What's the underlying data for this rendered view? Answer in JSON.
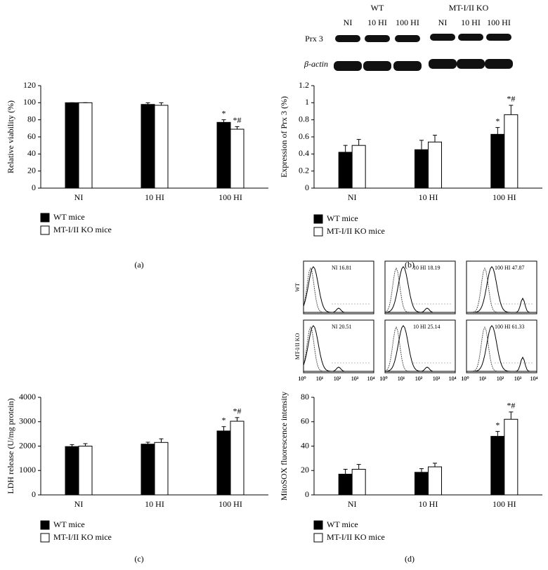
{
  "chart_data": [
    {
      "type": "bar",
      "panel": "(a)",
      "y_label": "Relative viability (%)",
      "categories": [
        "NI",
        "10 HI",
        "100 HI"
      ],
      "series": [
        {
          "name": "WT mice",
          "color": "#000000",
          "values": [
            100,
            98,
            77
          ],
          "errors": [
            0,
            2,
            3
          ],
          "annotations": [
            null,
            null,
            "*"
          ]
        },
        {
          "name": "MT-I/II KO mice",
          "color": "#ffffff",
          "values": [
            100,
            97,
            69
          ],
          "errors": [
            0,
            3,
            3
          ],
          "annotations": [
            null,
            null,
            "*#"
          ]
        }
      ],
      "ylim": [
        0,
        120
      ],
      "yticks": [
        0,
        20,
        40,
        60,
        80,
        100,
        120
      ]
    },
    {
      "type": "bar",
      "panel": "(b)",
      "y_label": "Expression of Prx 3 (%)",
      "categories": [
        "NI",
        "10 HI",
        "100 HI"
      ],
      "series": [
        {
          "name": "WT mice",
          "color": "#000000",
          "values": [
            0.42,
            0.45,
            0.63
          ],
          "errors": [
            0.08,
            0.11,
            0.08
          ],
          "annotations": [
            null,
            null,
            "*"
          ]
        },
        {
          "name": "MT-I/II KO mice",
          "color": "#ffffff",
          "values": [
            0.5,
            0.54,
            0.86
          ],
          "errors": [
            0.07,
            0.08,
            0.11
          ],
          "annotations": [
            null,
            null,
            "*#"
          ]
        }
      ],
      "ylim": [
        0,
        1.2
      ],
      "yticks": [
        0,
        0.2,
        0.4,
        0.6,
        0.8,
        1,
        1.2
      ]
    },
    {
      "type": "bar",
      "panel": "(c)",
      "y_label": "LDH release (U/mg protein)",
      "categories": [
        "NI",
        "10 HI",
        "100 HI"
      ],
      "series": [
        {
          "name": "WT mice",
          "color": "#000000",
          "values": [
            1980,
            2080,
            2620
          ],
          "errors": [
            80,
            80,
            180
          ],
          "annotations": [
            null,
            null,
            "*"
          ]
        },
        {
          "name": "MT-I/II KO mice",
          "color": "#ffffff",
          "values": [
            2000,
            2150,
            3020
          ],
          "errors": [
            100,
            150,
            150
          ],
          "annotations": [
            null,
            null,
            "*#"
          ]
        }
      ],
      "ylim": [
        0,
        4000
      ],
      "yticks": [
        0,
        1000,
        2000,
        3000,
        4000
      ]
    },
    {
      "type": "bar",
      "panel": "(d)",
      "y_label": "MitoSOX fluorescence intensity",
      "categories": [
        "NI",
        "10 HI",
        "100 HI"
      ],
      "series": [
        {
          "name": "WT mice",
          "color": "#000000",
          "values": [
            17,
            18.5,
            48
          ],
          "errors": [
            4,
            3,
            4
          ],
          "annotations": [
            null,
            null,
            "*"
          ]
        },
        {
          "name": "MT-I/II KO mice",
          "color": "#ffffff",
          "values": [
            21,
            23,
            62
          ],
          "errors": [
            4,
            3,
            6
          ],
          "annotations": [
            null,
            null,
            "*#"
          ]
        }
      ],
      "ylim": [
        0,
        80
      ],
      "yticks": [
        0,
        20,
        40,
        60,
        80
      ]
    }
  ],
  "blot": {
    "groups": [
      "WT",
      "MT-I/II KO"
    ],
    "lanes": [
      "NI",
      "10 HI",
      "100 HI",
      "NI",
      "10 HI",
      "100 HI"
    ],
    "rows": [
      "Prx 3",
      "β-actin"
    ]
  },
  "flow": {
    "rows": [
      "WT",
      "MT-I/II KO"
    ],
    "panels": [
      "NI 16.81",
      "10 HI 18.19",
      "100 HI 47.87",
      "NI 20.51",
      "10 HI 25.14",
      "100 HI 61.33"
    ],
    "xtick_labels": [
      "10⁰",
      "10¹",
      "10²",
      "10³",
      "10⁴"
    ]
  }
}
